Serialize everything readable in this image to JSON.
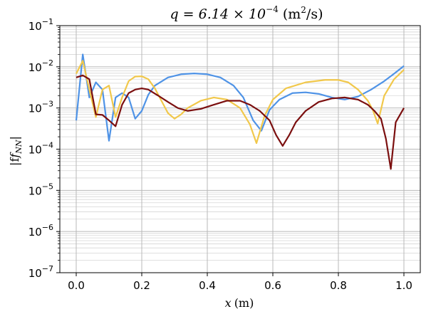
{
  "chart_data": {
    "type": "line",
    "title_math": "q = 6.14 × 10",
    "title_exp": "−4",
    "title_units": "(m",
    "title_units_exp": "2",
    "title_units_tail": "/s)",
    "xlabel_var": "x",
    "xlabel_unit": "(m)",
    "ylabel": "|f",
    "ylabel_sub": "NN",
    "ylabel_tail": "|",
    "xlim": [
      -0.05,
      1.05
    ],
    "ylim_exp": [
      -7,
      -1
    ],
    "y_scale": "log",
    "grid": true,
    "x_ticks": [
      0.0,
      0.2,
      0.4,
      0.6,
      0.8,
      1.0
    ],
    "x_tick_labels": [
      "0.0",
      "0.2",
      "0.4",
      "0.6",
      "0.8",
      "1.0"
    ],
    "y_ticks_exp": [
      -1,
      -2,
      -3,
      -4,
      -5,
      -6,
      -7
    ],
    "y_tick_base": "10",
    "y_tick_exps": [
      "−1",
      "−2",
      "−3",
      "−4",
      "−5",
      "−6",
      "−7"
    ],
    "series": [
      {
        "color": "#4f93e6",
        "points": [
          [
            0.0,
            0.0005
          ],
          [
            0.02,
            0.02
          ],
          [
            0.04,
            0.0018
          ],
          [
            0.06,
            0.0042
          ],
          [
            0.08,
            0.0028
          ],
          [
            0.1,
            0.00016
          ],
          [
            0.12,
            0.0018
          ],
          [
            0.14,
            0.0023
          ],
          [
            0.16,
            0.0018
          ],
          [
            0.18,
            0.00055
          ],
          [
            0.2,
            0.00085
          ],
          [
            0.22,
            0.0021
          ],
          [
            0.24,
            0.0035
          ],
          [
            0.28,
            0.0055
          ],
          [
            0.32,
            0.0066
          ],
          [
            0.36,
            0.0069
          ],
          [
            0.4,
            0.0066
          ],
          [
            0.44,
            0.0055
          ],
          [
            0.48,
            0.0035
          ],
          [
            0.51,
            0.0018
          ],
          [
            0.54,
            0.0005
          ],
          [
            0.565,
            0.00028
          ],
          [
            0.59,
            0.0009
          ],
          [
            0.62,
            0.0016
          ],
          [
            0.66,
            0.0023
          ],
          [
            0.7,
            0.0024
          ],
          [
            0.74,
            0.0022
          ],
          [
            0.78,
            0.0018
          ],
          [
            0.82,
            0.0016
          ],
          [
            0.86,
            0.0019
          ],
          [
            0.9,
            0.0028
          ],
          [
            0.94,
            0.0045
          ],
          [
            0.97,
            0.0068
          ],
          [
            1.0,
            0.0105
          ]
        ]
      },
      {
        "color": "#f1c84b",
        "points": [
          [
            0.0,
            0.0068
          ],
          [
            0.02,
            0.014
          ],
          [
            0.04,
            0.0028
          ],
          [
            0.06,
            0.0006
          ],
          [
            0.08,
            0.0028
          ],
          [
            0.1,
            0.0035
          ],
          [
            0.12,
            0.0006
          ],
          [
            0.14,
            0.0018
          ],
          [
            0.16,
            0.0045
          ],
          [
            0.18,
            0.0058
          ],
          [
            0.2,
            0.0059
          ],
          [
            0.22,
            0.005
          ],
          [
            0.24,
            0.003
          ],
          [
            0.26,
            0.0015
          ],
          [
            0.28,
            0.00075
          ],
          [
            0.3,
            0.00055
          ],
          [
            0.32,
            0.0007
          ],
          [
            0.34,
            0.001
          ],
          [
            0.38,
            0.0015
          ],
          [
            0.42,
            0.0018
          ],
          [
            0.46,
            0.0016
          ],
          [
            0.5,
            0.001
          ],
          [
            0.53,
            0.0004
          ],
          [
            0.55,
            0.00014
          ],
          [
            0.575,
            0.00065
          ],
          [
            0.6,
            0.0016
          ],
          [
            0.64,
            0.003
          ],
          [
            0.7,
            0.0042
          ],
          [
            0.76,
            0.0048
          ],
          [
            0.8,
            0.0048
          ],
          [
            0.83,
            0.0042
          ],
          [
            0.86,
            0.0028
          ],
          [
            0.89,
            0.0015
          ],
          [
            0.905,
            0.0009
          ],
          [
            0.92,
            0.00042
          ],
          [
            0.94,
            0.002
          ],
          [
            0.97,
            0.005
          ],
          [
            1.0,
            0.0085
          ]
        ]
      },
      {
        "color": "#7b0f0f",
        "points": [
          [
            0.0,
            0.0055
          ],
          [
            0.02,
            0.0062
          ],
          [
            0.04,
            0.005
          ],
          [
            0.06,
            0.0007
          ],
          [
            0.08,
            0.00068
          ],
          [
            0.1,
            0.0005
          ],
          [
            0.12,
            0.00036
          ],
          [
            0.14,
            0.0012
          ],
          [
            0.16,
            0.0023
          ],
          [
            0.18,
            0.0028
          ],
          [
            0.2,
            0.003
          ],
          [
            0.22,
            0.0028
          ],
          [
            0.25,
            0.002
          ],
          [
            0.28,
            0.0014
          ],
          [
            0.31,
            0.001
          ],
          [
            0.34,
            0.00085
          ],
          [
            0.38,
            0.00095
          ],
          [
            0.42,
            0.0012
          ],
          [
            0.46,
            0.0015
          ],
          [
            0.5,
            0.0015
          ],
          [
            0.53,
            0.0012
          ],
          [
            0.56,
            0.00085
          ],
          [
            0.59,
            0.0005
          ],
          [
            0.61,
            0.00022
          ],
          [
            0.63,
            0.00012
          ],
          [
            0.65,
            0.00022
          ],
          [
            0.67,
            0.00045
          ],
          [
            0.7,
            0.00085
          ],
          [
            0.74,
            0.0014
          ],
          [
            0.78,
            0.0017
          ],
          [
            0.82,
            0.0018
          ],
          [
            0.86,
            0.0016
          ],
          [
            0.89,
            0.0012
          ],
          [
            0.91,
            0.00085
          ],
          [
            0.93,
            0.00055
          ],
          [
            0.945,
            0.00018
          ],
          [
            0.96,
            3.3e-05
          ],
          [
            0.975,
            0.00045
          ],
          [
            1.0,
            0.001
          ]
        ]
      }
    ]
  }
}
